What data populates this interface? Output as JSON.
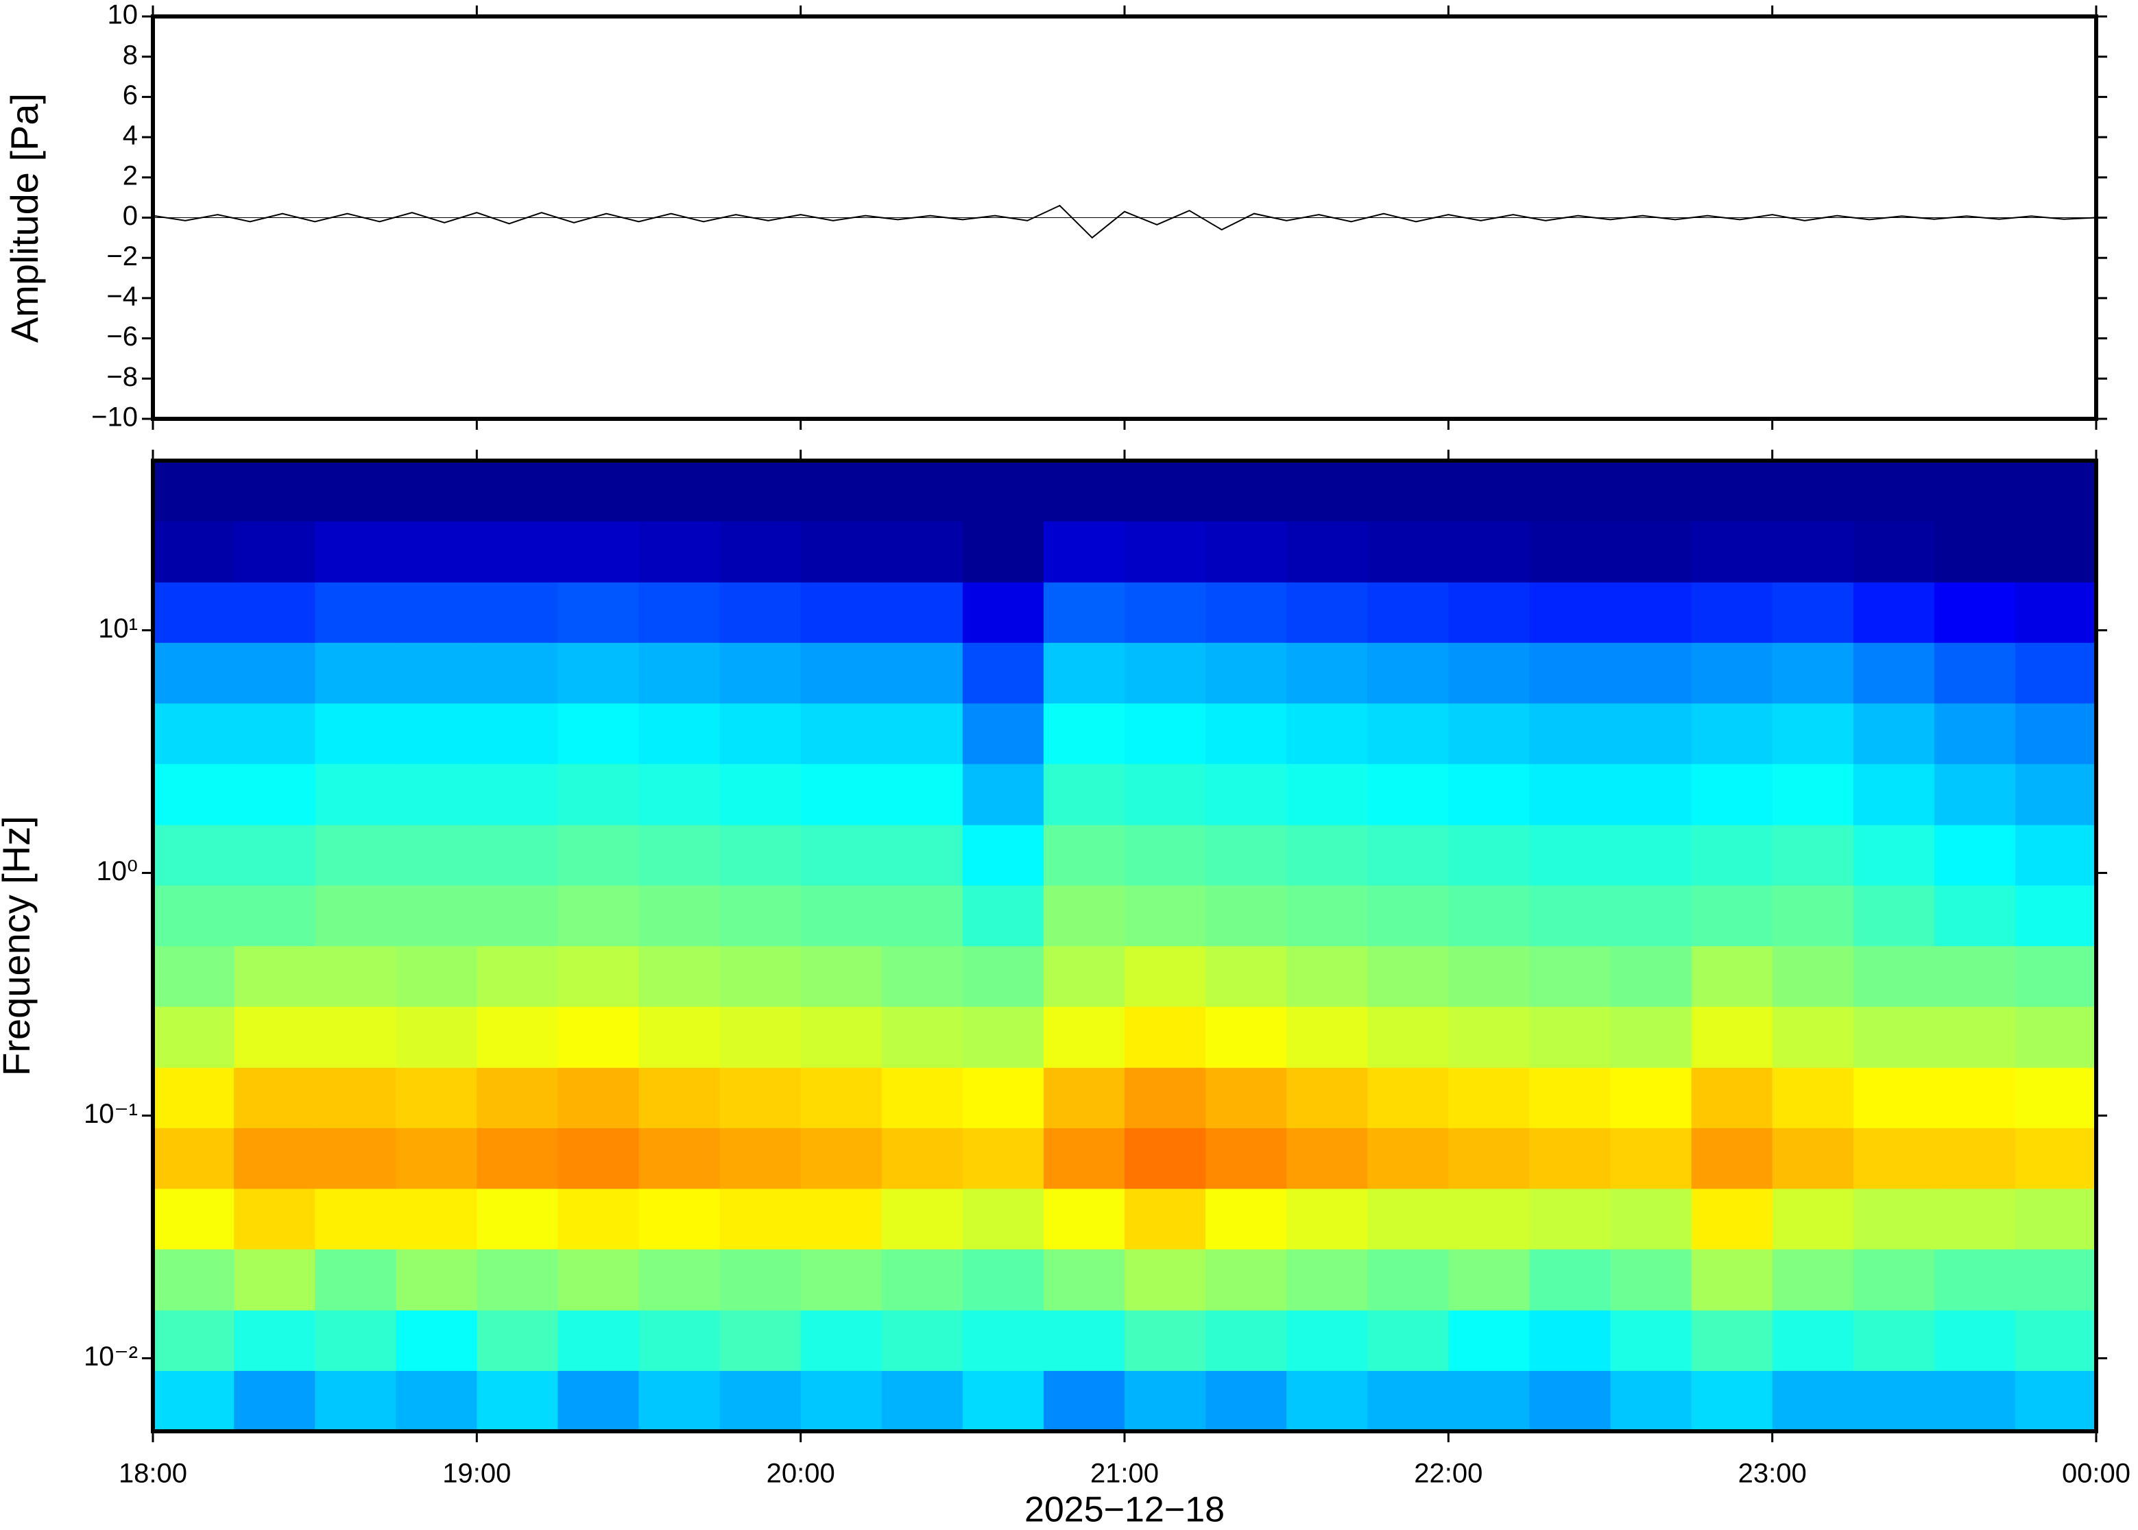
{
  "chart_data": [
    {
      "type": "line",
      "ylabel": "Amplitude [Pa]",
      "color": "#000000",
      "xlim": [
        18,
        24
      ],
      "ylim": [
        -10,
        10
      ],
      "yticks": [
        {
          "value": -10,
          "label": "−10"
        },
        {
          "value": -8,
          "label": "−8"
        },
        {
          "value": -6,
          "label": "−6"
        },
        {
          "value": -4,
          "label": "−4"
        },
        {
          "value": -2,
          "label": "−2"
        },
        0,
        2,
        4,
        6,
        8,
        10
      ],
      "x": [
        18.0,
        18.1,
        18.2,
        18.3,
        18.4,
        18.5,
        18.6,
        18.7,
        18.8,
        18.9,
        19.0,
        19.1,
        19.2,
        19.3,
        19.4,
        19.5,
        19.6,
        19.7,
        19.8,
        19.9,
        20.0,
        20.1,
        20.2,
        20.3,
        20.4,
        20.5,
        20.6,
        20.7,
        20.8,
        20.9,
        21.0,
        21.1,
        21.2,
        21.3,
        21.4,
        21.5,
        21.6,
        21.7,
        21.8,
        21.9,
        22.0,
        22.1,
        22.2,
        22.3,
        22.4,
        22.5,
        22.6,
        22.7,
        22.8,
        22.9,
        23.0,
        23.1,
        23.2,
        23.3,
        23.4,
        23.5,
        23.6,
        23.7,
        23.8,
        23.9,
        24.0
      ],
      "values": [
        0.1,
        -0.15,
        0.15,
        -0.2,
        0.2,
        -0.2,
        0.2,
        -0.2,
        0.25,
        -0.25,
        0.25,
        -0.3,
        0.25,
        -0.25,
        0.2,
        -0.2,
        0.2,
        -0.2,
        0.15,
        -0.15,
        0.15,
        -0.15,
        0.1,
        -0.1,
        0.1,
        -0.1,
        0.1,
        -0.15,
        0.6,
        -1.0,
        0.3,
        -0.35,
        0.35,
        -0.6,
        0.2,
        -0.15,
        0.15,
        -0.2,
        0.2,
        -0.2,
        0.15,
        -0.15,
        0.15,
        -0.15,
        0.1,
        -0.1,
        0.1,
        -0.1,
        0.1,
        -0.1,
        0.15,
        -0.15,
        0.1,
        -0.1,
        0.08,
        -0.08,
        0.08,
        -0.08,
        0.08,
        -0.08,
        0
      ]
    },
    {
      "type": "heatmap",
      "ylabel": "Frequency [Hz]",
      "xlabel": "2025−12−18",
      "colormap": "jet",
      "log_y": true,
      "xlim": [
        18,
        24
      ],
      "ylim": [
        0.005,
        50
      ],
      "zlim": [
        0,
        100
      ],
      "xticks": [
        {
          "value": 18,
          "label": "18:00"
        },
        {
          "value": 19,
          "label": "19:00"
        },
        {
          "value": 20,
          "label": "20:00"
        },
        {
          "value": 21,
          "label": "21:00"
        },
        {
          "value": 22,
          "label": "22:00"
        },
        {
          "value": 23,
          "label": "23:00"
        },
        {
          "value": 24,
          "label": "00:00"
        }
      ],
      "yticks": [
        {
          "value": 0.01,
          "label": "10⁻²"
        },
        {
          "value": 0.1,
          "label": "10⁻¹"
        },
        {
          "value": 1,
          "label": "10⁰"
        },
        {
          "value": 10,
          "label": "10¹"
        }
      ],
      "x_bins": [
        18,
        18.25,
        18.5,
        18.75,
        19,
        19.25,
        19.5,
        19.75,
        20,
        20.25,
        20.5,
        20.75,
        21,
        21.25,
        21.5,
        21.75,
        22,
        22.25,
        22.5,
        22.75,
        23,
        23.25,
        23.5,
        23.75,
        24
      ],
      "y_bins": [
        0.005,
        0.0089,
        0.0158,
        0.0282,
        0.0501,
        0.0891,
        0.158,
        0.282,
        0.501,
        0.891,
        1.58,
        2.82,
        5.01,
        8.91,
        15.8,
        28.2,
        50
      ],
      "values": [
        [
          34,
          28,
          32,
          30,
          34,
          28,
          32,
          30,
          32,
          30,
          34,
          26,
          30,
          28,
          32,
          30,
          30,
          28,
          32,
          34,
          30,
          30,
          30,
          32
        ],
        [
          44,
          40,
          42,
          38,
          44,
          40,
          42,
          44,
          40,
          42,
          40,
          40,
          44,
          42,
          40,
          42,
          38,
          36,
          40,
          44,
          40,
          42,
          40,
          42
        ],
        [
          50,
          54,
          48,
          52,
          50,
          52,
          50,
          49,
          50,
          48,
          46,
          50,
          54,
          52,
          50,
          48,
          50,
          46,
          48,
          54,
          50,
          48,
          46,
          46
        ],
        [
          62,
          66,
          64,
          64,
          62,
          64,
          63,
          64,
          64,
          60,
          58,
          62,
          66,
          62,
          60,
          58,
          58,
          57,
          56,
          64,
          58,
          56,
          56,
          55
        ],
        [
          68,
          72,
          72,
          71,
          73,
          74,
          72,
          71,
          70,
          68,
          67,
          73,
          76,
          74,
          72,
          70,
          69,
          68,
          67,
          72,
          69,
          67,
          67,
          66
        ],
        [
          64,
          68,
          68,
          67,
          69,
          70,
          68,
          67,
          66,
          64,
          63,
          69,
          72,
          70,
          68,
          66,
          65,
          64,
          63,
          68,
          65,
          63,
          63,
          62
        ],
        [
          56,
          60,
          60,
          59,
          61,
          62,
          60,
          59,
          58,
          56,
          55,
          61,
          64,
          62,
          60,
          58,
          57,
          56,
          55,
          60,
          57,
          55,
          55,
          54
        ],
        [
          50,
          54,
          54,
          53,
          55,
          56,
          54,
          53,
          52,
          50,
          49,
          55,
          58,
          56,
          54,
          52,
          51,
          50,
          49,
          54,
          51,
          49,
          49,
          48
        ],
        [
          47,
          47,
          49,
          49,
          49,
          50,
          49,
          48,
          47,
          47,
          42,
          51,
          50,
          49,
          48,
          47,
          46,
          45,
          45,
          46,
          47,
          44,
          41,
          39
        ],
        [
          43,
          43,
          45,
          45,
          45,
          46,
          45,
          44,
          43,
          43,
          37,
          47,
          46,
          45,
          44,
          43,
          42,
          41,
          41,
          42,
          43,
          40,
          37,
          35
        ],
        [
          38,
          38,
          40,
          40,
          40,
          41,
          40,
          39,
          38,
          38,
          31,
          42,
          41,
          40,
          39,
          38,
          37,
          36,
          36,
          37,
          38,
          35,
          32,
          30
        ],
        [
          34,
          34,
          36,
          36,
          36,
          37,
          36,
          35,
          34,
          34,
          26,
          38,
          37,
          36,
          35,
          34,
          33,
          32,
          32,
          33,
          34,
          31,
          28,
          26
        ],
        [
          28,
          28,
          30,
          30,
          30,
          31,
          30,
          29,
          28,
          28,
          20,
          32,
          31,
          30,
          29,
          28,
          27,
          26,
          26,
          27,
          28,
          25,
          22,
          20
        ],
        [
          18,
          18,
          20,
          20,
          20,
          21,
          20,
          19,
          18,
          18,
          10,
          22,
          21,
          20,
          19,
          18,
          17,
          16,
          16,
          17,
          18,
          15,
          12,
          10
        ],
        [
          4,
          5,
          7,
          7,
          7,
          7,
          6,
          5,
          4,
          4,
          2,
          8,
          7,
          6,
          5,
          4,
          4,
          3,
          3,
          4,
          4,
          3,
          2,
          2
        ],
        [
          2,
          2,
          2,
          2,
          2,
          2,
          2,
          2,
          2,
          2,
          2,
          2,
          2,
          2,
          2,
          2,
          2,
          2,
          2,
          2,
          2,
          2,
          2,
          2
        ]
      ]
    }
  ]
}
